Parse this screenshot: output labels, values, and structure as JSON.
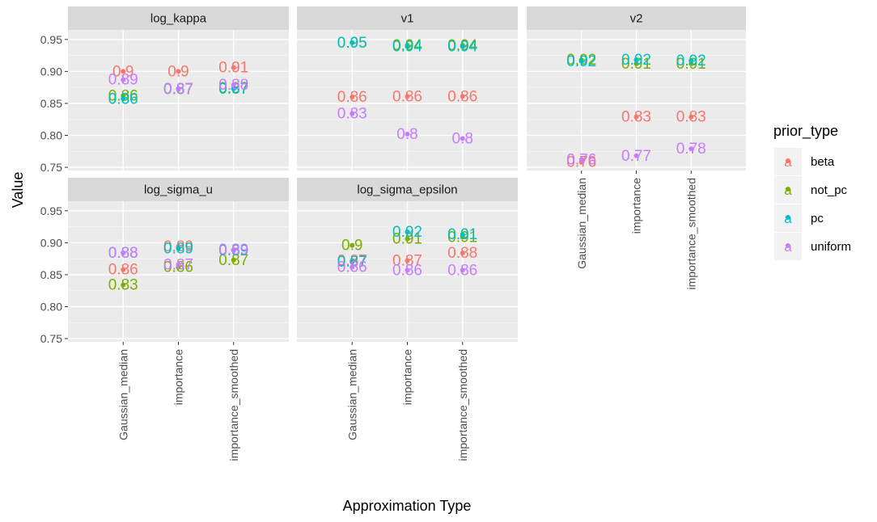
{
  "chart_data": {
    "type": "scatter",
    "xlabel": "Approximation Type",
    "ylabel": "Value",
    "ylim": [
      0.745,
      0.965
    ],
    "yticks": [
      "0.75",
      "0.80",
      "0.85",
      "0.90",
      "0.95"
    ],
    "categories": [
      "Gaussian_median",
      "importance",
      "importance_smoothed"
    ],
    "legend": {
      "title": "prior_type",
      "placement": "right",
      "glyph": "a",
      "items": [
        {
          "name": "beta",
          "color": "#F8766D"
        },
        {
          "name": "not_pc",
          "color": "#7CAE00"
        },
        {
          "name": "pc",
          "color": "#00BFC4"
        },
        {
          "name": "uniform",
          "color": "#C77CFF"
        }
      ]
    },
    "panels": [
      {
        "name": "log_kappa",
        "series": [
          {
            "name": "beta",
            "points": [
              [
                0,
                0.9,
                "0.9"
              ],
              [
                1,
                0.9,
                "0.9"
              ],
              [
                2,
                0.906,
                "0.91"
              ]
            ]
          },
          {
            "name": "not_pc",
            "points": [
              [
                0,
                0.862,
                "0.86"
              ],
              [
                1,
                0.872,
                "0.87"
              ],
              [
                2,
                0.874,
                "0.87"
              ]
            ]
          },
          {
            "name": "pc",
            "points": [
              [
                0,
                0.857,
                "0.86"
              ],
              [
                1,
                0.873,
                "0.87"
              ],
              [
                2,
                0.873,
                "0.87"
              ]
            ]
          },
          {
            "name": "uniform",
            "points": [
              [
                0,
                0.887,
                "0.89"
              ],
              [
                1,
                0.873,
                "0.87"
              ],
              [
                2,
                0.879,
                "0.88"
              ]
            ]
          }
        ]
      },
      {
        "name": "v1",
        "series": [
          {
            "name": "beta",
            "points": [
              [
                0,
                0.86,
                "0.86"
              ],
              [
                1,
                0.861,
                "0.86"
              ],
              [
                2,
                0.861,
                "0.86"
              ]
            ]
          },
          {
            "name": "not_pc",
            "points": [
              [
                0,
                0.945,
                "0.95"
              ],
              [
                1,
                0.941,
                "0.94"
              ],
              [
                2,
                0.941,
                "0.94"
              ]
            ]
          },
          {
            "name": "pc",
            "points": [
              [
                0,
                0.945,
                "0.95"
              ],
              [
                1,
                0.939,
                "0.94"
              ],
              [
                2,
                0.939,
                "0.94"
              ]
            ]
          },
          {
            "name": "uniform",
            "points": [
              [
                0,
                0.834,
                "0.83"
              ],
              [
                1,
                0.802,
                "0.8"
              ],
              [
                2,
                0.795,
                "0.8"
              ]
            ]
          }
        ]
      },
      {
        "name": "v2",
        "series": [
          {
            "name": "beta",
            "points": [
              [
                0,
                0.758,
                "0.76"
              ],
              [
                1,
                0.829,
                "0.83"
              ],
              [
                2,
                0.829,
                "0.83"
              ]
            ]
          },
          {
            "name": "not_pc",
            "points": [
              [
                0,
                0.918,
                "0.92"
              ],
              [
                1,
                0.912,
                "0.91"
              ],
              [
                2,
                0.912,
                "0.91"
              ]
            ]
          },
          {
            "name": "pc",
            "points": [
              [
                0,
                0.916,
                "0.92"
              ],
              [
                1,
                0.918,
                "0.92"
              ],
              [
                2,
                0.917,
                "0.92"
              ]
            ]
          },
          {
            "name": "uniform",
            "points": [
              [
                0,
                0.762,
                "0.76"
              ],
              [
                1,
                0.768,
                "0.77"
              ],
              [
                2,
                0.779,
                "0.78"
              ]
            ]
          }
        ]
      },
      {
        "name": "log_sigma_u",
        "series": [
          {
            "name": "beta",
            "points": [
              [
                0,
                0.858,
                "0.86"
              ],
              [
                1,
                0.894,
                "0.89"
              ],
              [
                2,
                0.889,
                "0.89"
              ]
            ]
          },
          {
            "name": "not_pc",
            "points": [
              [
                0,
                0.834,
                "0.83"
              ],
              [
                1,
                0.862,
                "0.86"
              ],
              [
                2,
                0.873,
                "0.87"
              ]
            ]
          },
          {
            "name": "pc",
            "points": [
              [
                0,
                0.884,
                "0.88"
              ],
              [
                1,
                0.891,
                "0.89"
              ],
              [
                2,
                0.888,
                "0.89"
              ]
            ]
          },
          {
            "name": "uniform",
            "points": [
              [
                0,
                0.884,
                "0.88"
              ],
              [
                1,
                0.866,
                "0.87"
              ],
              [
                2,
                0.889,
                "0.89"
              ]
            ]
          }
        ]
      },
      {
        "name": "log_sigma_epsilon",
        "series": [
          {
            "name": "beta",
            "points": [
              [
                0,
                0.872,
                "0.87"
              ],
              [
                1,
                0.872,
                "0.87"
              ],
              [
                2,
                0.884,
                "0.88"
              ]
            ]
          },
          {
            "name": "not_pc",
            "points": [
              [
                0,
                0.896,
                "0.9"
              ],
              [
                1,
                0.906,
                "0.91"
              ],
              [
                2,
                0.909,
                "0.91"
              ]
            ]
          },
          {
            "name": "pc",
            "points": [
              [
                0,
                0.87,
                "0.87"
              ],
              [
                1,
                0.917,
                "0.92"
              ],
              [
                2,
                0.913,
                "0.91"
              ]
            ]
          },
          {
            "name": "uniform",
            "points": [
              [
                0,
                0.862,
                "0.86"
              ],
              [
                1,
                0.857,
                "0.86"
              ],
              [
                2,
                0.857,
                "0.86"
              ]
            ]
          }
        ]
      }
    ]
  }
}
